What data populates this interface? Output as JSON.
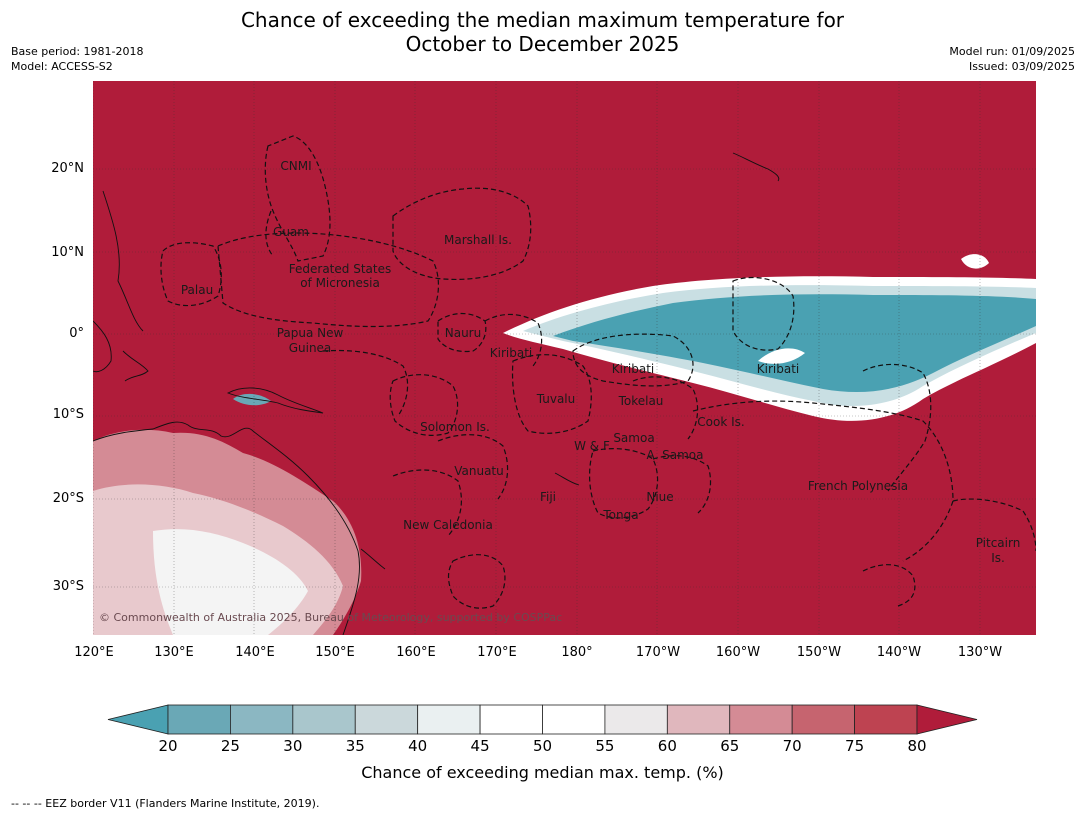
{
  "header": {
    "title_line1": "Chance of exceeding the median maximum temperature for",
    "title_line2": "October to December 2025",
    "base_period": "Base period: 1981-2018",
    "model": "Model: ACCESS-S2",
    "model_run": "Model run: 01/09/2025",
    "issued": "Issued: 03/09/2025"
  },
  "map": {
    "lat_labels": [
      "20°N",
      "10°N",
      "0°",
      "10°S",
      "20°S",
      "30°S"
    ],
    "lon_labels": [
      "120°E",
      "130°E",
      "140°E",
      "150°E",
      "160°E",
      "170°E",
      "180°",
      "170°W",
      "160°W",
      "150°W",
      "140°W",
      "130°W"
    ],
    "places": [
      "CNMI",
      "Guam",
      "Marshall Is.",
      "Federated States",
      "of Micronesia",
      "Palau",
      "Papua New",
      "Guinea",
      "Nauru",
      "Kiribati",
      "Kiribati",
      "Kiribati",
      "Tuvalu",
      "Tokelau",
      "Cook Is.",
      "Solomon Is.",
      "Samoa",
      "W & F",
      "A. Samoa",
      "Vanuatu",
      "Fiji",
      "Niue",
      "Tonga",
      "French Polynesia",
      "New Caledonia",
      "Pitcairn",
      "Is."
    ],
    "copyright": "© Commonwealth of Australia 2025, Bureau of Meteorology, supported by COSPPac",
    "colors": {
      "ocean_high": "#b01c3a",
      "anomaly_low": "#4aa1b2",
      "neutral": "#ffffff"
    }
  },
  "colorbar": {
    "ticks": [
      "20",
      "25",
      "30",
      "35",
      "40",
      "45",
      "50",
      "55",
      "60",
      "65",
      "70",
      "75",
      "80"
    ],
    "colors": [
      "#6aa8b6",
      "#8bb7c2",
      "#a9c6cc",
      "#cbd8db",
      "#eaf0f1",
      "#ffffff",
      "#ffffff",
      "#ebe9ea",
      "#e0b7bd",
      "#d48b95",
      "#c6646f",
      "#be4351"
    ],
    "under_color": "#4aa1b2",
    "over_color": "#b01c3a",
    "label": "Chance of exceeding median max. temp. (%)"
  },
  "footnote": "--  --  -- EEZ border V11 (Flanders Marine Institute, 2019)."
}
